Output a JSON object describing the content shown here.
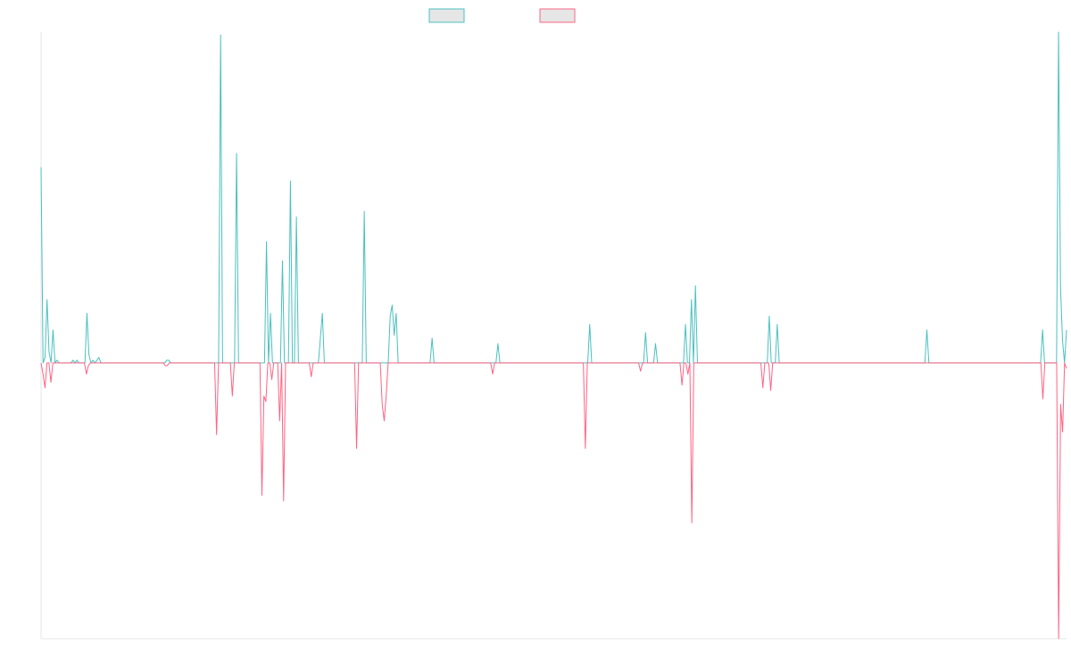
{
  "chart_data": {
    "type": "line",
    "title": "",
    "xlabel": "",
    "ylabel": "",
    "grid": false,
    "legend_position": "top-center",
    "ylim": [
      -100,
      120
    ],
    "series": [
      {
        "color": "#4bc0c0",
        "legend_fill": "#e6e6e6",
        "values": [
          71,
          0,
          2,
          23,
          4,
          0,
          12,
          0,
          1,
          0,
          0,
          0,
          0,
          0,
          0,
          0,
          1,
          0,
          1,
          0,
          0,
          0,
          0,
          18,
          3,
          0,
          1,
          0,
          1,
          2,
          0,
          0,
          0,
          0,
          0,
          0,
          0,
          0,
          0,
          0,
          0,
          0,
          0,
          0,
          0,
          0,
          0,
          0,
          0,
          0,
          0,
          0,
          0,
          0,
          0,
          0,
          0,
          0,
          0,
          0,
          0,
          0,
          0,
          1,
          1,
          0,
          0,
          0,
          0,
          0,
          0,
          0,
          0,
          0,
          0,
          0,
          0,
          0,
          0,
          0,
          0,
          0,
          0,
          0,
          0,
          0,
          0,
          0,
          0,
          0,
          119,
          0,
          0,
          0,
          0,
          0,
          0,
          0,
          76,
          0,
          0,
          0,
          0,
          0,
          0,
          0,
          0,
          0,
          0,
          0,
          0,
          0,
          0,
          44,
          0,
          18,
          0,
          0,
          0,
          0,
          0,
          37,
          0,
          0,
          0,
          66,
          0,
          0,
          53,
          0,
          0,
          0,
          0,
          0,
          0,
          0,
          0,
          0,
          0,
          0,
          9,
          18,
          0,
          0,
          0,
          0,
          0,
          0,
          0,
          0,
          0,
          0,
          0,
          0,
          0,
          0,
          0,
          0,
          0,
          0,
          0,
          0,
          55,
          0,
          0,
          0,
          0,
          0,
          0,
          0,
          0,
          0,
          0,
          0,
          0,
          17,
          21,
          10,
          18,
          0,
          0,
          0,
          0,
          0,
          0,
          0,
          0,
          0,
          0,
          0,
          0,
          0,
          0,
          0,
          0,
          0,
          9,
          0,
          0,
          0,
          0,
          0,
          0,
          0,
          0,
          0,
          0,
          0,
          0,
          0,
          0,
          0,
          0,
          0,
          0,
          0,
          0,
          0,
          0,
          0,
          0,
          0,
          0,
          0,
          0,
          0,
          0,
          0,
          0,
          7,
          0,
          0,
          0,
          0,
          0,
          0,
          0,
          0,
          0,
          0,
          0,
          0,
          0,
          0,
          0,
          0,
          0,
          0,
          0,
          0,
          0,
          0,
          0,
          0,
          0,
          0,
          0,
          0,
          0,
          0,
          0,
          0,
          0,
          0,
          0,
          0,
          0,
          0,
          0,
          0,
          0,
          0,
          0,
          0,
          0,
          14,
          0,
          0,
          0,
          0,
          0,
          0,
          0,
          0,
          0,
          0,
          0,
          0,
          0,
          0,
          0,
          0,
          0,
          0,
          0,
          0,
          0,
          0,
          0,
          0,
          0,
          0,
          0,
          11,
          0,
          0,
          0,
          0,
          7,
          0,
          0,
          0,
          0,
          0,
          0,
          0,
          0,
          0,
          0,
          0,
          0,
          0,
          0,
          14,
          0,
          0,
          23,
          0,
          28,
          0,
          0,
          0,
          0,
          0,
          0,
          0,
          0,
          0,
          0,
          0,
          0,
          0,
          0,
          0,
          0,
          0,
          0,
          0,
          0,
          0,
          0,
          0,
          0,
          0,
          0,
          0,
          0,
          0,
          0,
          0,
          0,
          0,
          0,
          0,
          0,
          17,
          0,
          0,
          0,
          14,
          0,
          0,
          0,
          0,
          0,
          0,
          0,
          0,
          0,
          0,
          0,
          0,
          0,
          0,
          0,
          0,
          0,
          0,
          0,
          0,
          0,
          0,
          0,
          0,
          0,
          0,
          0,
          0,
          0,
          0,
          0,
          0,
          0,
          0,
          0,
          0,
          0,
          0,
          0,
          0,
          0,
          0,
          0,
          0,
          0,
          0,
          0,
          0,
          0,
          0,
          0,
          0,
          0,
          0,
          0,
          0,
          0,
          0,
          0,
          0,
          0,
          0,
          0,
          0,
          0,
          0,
          0,
          0,
          0,
          0,
          0,
          0,
          0,
          0,
          12,
          0,
          0,
          0,
          0,
          0,
          0,
          0,
          0,
          0,
          0,
          0,
          0,
          0,
          0,
          0,
          0,
          0,
          0,
          0,
          0,
          0,
          0,
          0,
          0,
          0,
          0,
          0,
          0,
          0,
          0,
          0,
          0,
          0,
          0,
          0,
          0,
          0,
          0,
          0,
          0,
          0,
          0,
          0,
          0,
          0,
          0,
          0,
          0,
          0,
          0,
          0,
          0,
          0,
          0,
          0,
          0,
          0,
          12,
          0,
          0,
          0,
          0,
          0,
          0,
          0,
          120,
          27,
          8,
          0,
          12
        ]
      },
      {
        "color": "#ff6384",
        "legend_fill": "#e6e6e6",
        "values": [
          0,
          -4,
          -9,
          0,
          0,
          -7,
          0,
          0,
          0,
          0,
          0,
          0,
          0,
          0,
          0,
          0,
          0,
          0,
          0,
          0,
          0,
          0,
          0,
          -4,
          -1,
          0,
          0,
          0,
          0,
          0,
          0,
          0,
          0,
          0,
          0,
          0,
          0,
          0,
          0,
          0,
          0,
          0,
          0,
          0,
          0,
          0,
          0,
          0,
          0,
          0,
          0,
          0,
          0,
          0,
          0,
          0,
          0,
          0,
          0,
          0,
          0,
          0,
          0,
          -1,
          -1,
          0,
          0,
          0,
          0,
          0,
          0,
          0,
          0,
          0,
          0,
          0,
          0,
          0,
          0,
          0,
          0,
          0,
          0,
          0,
          0,
          0,
          0,
          0,
          0,
          -26,
          0,
          0,
          0,
          0,
          0,
          0,
          0,
          -12,
          0,
          0,
          0,
          0,
          0,
          0,
          0,
          0,
          0,
          0,
          0,
          0,
          0,
          0,
          -48,
          -12,
          -14,
          0,
          0,
          -6,
          0,
          0,
          0,
          -21,
          0,
          -50,
          0,
          0,
          0,
          0,
          0,
          0,
          0,
          0,
          0,
          0,
          0,
          0,
          0,
          -5,
          0,
          0,
          0,
          0,
          0,
          0,
          0,
          0,
          0,
          0,
          0,
          0,
          0,
          0,
          0,
          0,
          0,
          0,
          0,
          0,
          0,
          0,
          -31,
          0,
          0,
          0,
          0,
          0,
          0,
          0,
          0,
          0,
          0,
          0,
          0,
          -15,
          -21,
          -12,
          0,
          0,
          0,
          0,
          0,
          0,
          0,
          0,
          0,
          0,
          0,
          0,
          0,
          0,
          0,
          0,
          0,
          0,
          0,
          0,
          0,
          0,
          0,
          0,
          0,
          0,
          0,
          0,
          0,
          0,
          0,
          0,
          0,
          0,
          0,
          0,
          0,
          0,
          0,
          0,
          0,
          0,
          0,
          0,
          0,
          0,
          0,
          0,
          0,
          0,
          0,
          0,
          0,
          -4,
          0,
          0,
          0,
          0,
          0,
          0,
          0,
          0,
          0,
          0,
          0,
          0,
          0,
          0,
          0,
          0,
          0,
          0,
          0,
          0,
          0,
          0,
          0,
          0,
          0,
          0,
          0,
          0,
          0,
          0,
          0,
          0,
          0,
          0,
          0,
          0,
          0,
          0,
          0,
          0,
          0,
          0,
          0,
          0,
          0,
          0,
          -31,
          0,
          0,
          0,
          0,
          0,
          0,
          0,
          0,
          0,
          0,
          0,
          0,
          0,
          0,
          0,
          0,
          0,
          0,
          0,
          0,
          0,
          0,
          0,
          0,
          0,
          0,
          0,
          -3,
          0,
          0,
          0,
          0,
          0,
          0,
          0,
          0,
          0,
          0,
          0,
          0,
          0,
          0,
          0,
          0,
          0,
          0,
          0,
          0,
          -8,
          0,
          0,
          -4,
          0,
          -58,
          0,
          0,
          0,
          0,
          0,
          0,
          0,
          0,
          0,
          0,
          0,
          0,
          0,
          0,
          0,
          0,
          0,
          0,
          0,
          0,
          0,
          0,
          0,
          0,
          0,
          0,
          0,
          0,
          0,
          0,
          0,
          0,
          0,
          0,
          0,
          -9,
          0,
          0,
          0,
          -10,
          0,
          0,
          0,
          0,
          0,
          0,
          0,
          0,
          0,
          0,
          0,
          0,
          0,
          0,
          0,
          0,
          0,
          0,
          0,
          0,
          0,
          0,
          0,
          0,
          0,
          0,
          0,
          0,
          0,
          0,
          0,
          0,
          0,
          0,
          0,
          0,
          0,
          0,
          0,
          0,
          0,
          0,
          0,
          0,
          0,
          0,
          0,
          0,
          0,
          0,
          0,
          0,
          0,
          0,
          0,
          0,
          0,
          0,
          0,
          0,
          0,
          0,
          0,
          0,
          0,
          0,
          0,
          0,
          0,
          0,
          0,
          0,
          0,
          0,
          0,
          0,
          0,
          0,
          0,
          0,
          0,
          0,
          0,
          0,
          0,
          0,
          0,
          0,
          0,
          0,
          0,
          0,
          0,
          0,
          0,
          0,
          0,
          0,
          0,
          0,
          0,
          0,
          0,
          0,
          0,
          0,
          0,
          0,
          0,
          0,
          0,
          0,
          0,
          0,
          0,
          0,
          0,
          0,
          0,
          0,
          0,
          0,
          0,
          0,
          0,
          0,
          0,
          0,
          0,
          0,
          0,
          0,
          0,
          0,
          0,
          0,
          0,
          -13,
          0,
          0,
          0,
          0,
          0,
          0,
          0,
          -100,
          -15,
          -25,
          0,
          -2
        ]
      }
    ]
  }
}
